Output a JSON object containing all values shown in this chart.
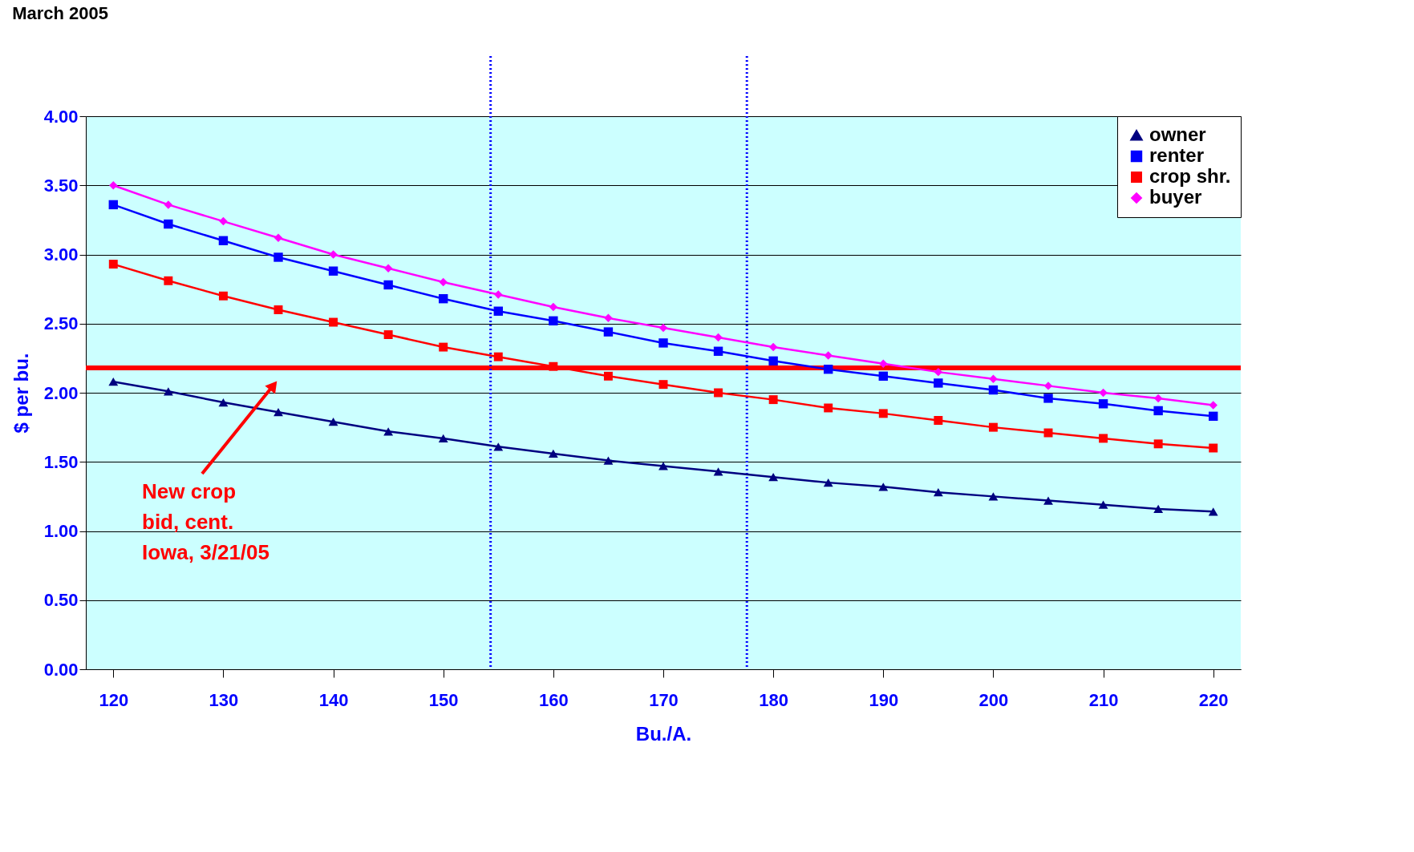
{
  "chart_data": {
    "type": "line",
    "title": "March 2005",
    "xlabel": "Bu./A.",
    "ylabel": "$ per bu.",
    "x": [
      120,
      125,
      130,
      135,
      140,
      145,
      150,
      155,
      160,
      165,
      170,
      175,
      180,
      185,
      190,
      195,
      200,
      205,
      210,
      215,
      220
    ],
    "series": [
      {
        "name": "owner",
        "color": "#000080",
        "marker": "triangle",
        "values": [
          2.08,
          2.01,
          1.93,
          1.86,
          1.79,
          1.72,
          1.67,
          1.61,
          1.56,
          1.51,
          1.47,
          1.43,
          1.39,
          1.35,
          1.32,
          1.28,
          1.25,
          1.22,
          1.19,
          1.16,
          1.14
        ]
      },
      {
        "name": "renter",
        "color": "#0000ff",
        "marker": "square",
        "values": [
          3.36,
          3.22,
          3.1,
          2.98,
          2.88,
          2.78,
          2.68,
          2.59,
          2.52,
          2.44,
          2.36,
          2.3,
          2.23,
          2.17,
          2.12,
          2.07,
          2.02,
          1.96,
          1.92,
          1.87,
          1.83
        ]
      },
      {
        "name": "crop shr.",
        "color": "#ff0000",
        "marker": "square",
        "values": [
          2.93,
          2.81,
          2.7,
          2.6,
          2.51,
          2.42,
          2.33,
          2.26,
          2.19,
          2.12,
          2.06,
          2.0,
          1.95,
          1.89,
          1.85,
          1.8,
          1.75,
          1.71,
          1.67,
          1.63,
          1.6
        ]
      },
      {
        "name": "buyer",
        "color": "#ff00ff",
        "marker": "diamond",
        "values": [
          3.5,
          3.36,
          3.24,
          3.12,
          3.0,
          2.9,
          2.8,
          2.71,
          2.62,
          2.54,
          2.47,
          2.4,
          2.33,
          2.27,
          2.21,
          2.15,
          2.1,
          2.05,
          2.0,
          1.96,
          1.91
        ]
      }
    ],
    "xlim": [
      117.5,
      222.5
    ],
    "xticks": [
      120,
      130,
      140,
      150,
      160,
      170,
      180,
      190,
      200,
      210,
      220
    ],
    "ylim": [
      0,
      4
    ],
    "yticks": [
      {
        "value": 0,
        "label": "0.00"
      },
      {
        "value": 0.5,
        "label": "0.50"
      },
      {
        "value": 1,
        "label": "1.00"
      },
      {
        "value": 1.5,
        "label": "1.50"
      },
      {
        "value": 2,
        "label": "2.00"
      },
      {
        "value": 2.5,
        "label": "2.50"
      },
      {
        "value": 3,
        "label": "3.00"
      },
      {
        "value": 3.5,
        "label": "3.50"
      },
      {
        "value": 4,
        "label": "4.00"
      }
    ],
    "grid": "y",
    "legend": "top right",
    "ref_lines": [
      {
        "axis": "x",
        "value": 154.3,
        "color": "#0000ff",
        "line_style": "dotted"
      },
      {
        "axis": "x",
        "value": 177.6,
        "color": "#0000ff",
        "line_style": "dotted"
      },
      {
        "axis": "y",
        "value": 2.18,
        "color": "#ff0000",
        "line_style": "solid"
      }
    ],
    "annotations": [
      "New crop\nbid, cent.\nIowa, 3/21/05"
    ]
  }
}
